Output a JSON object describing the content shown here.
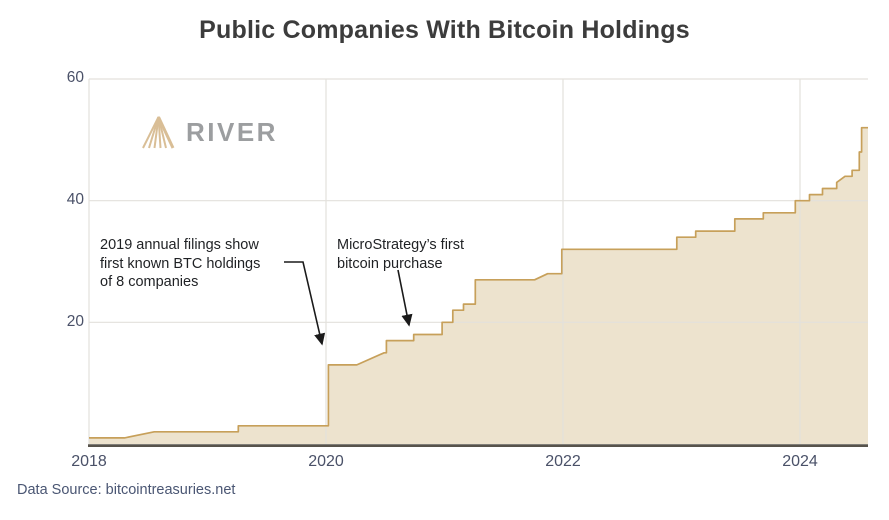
{
  "title": "Public Companies With Bitcoin Holdings",
  "logo": {
    "text": "RIVER"
  },
  "annotations": [
    {
      "lines": [
        "2019 annual filings show",
        "first known BTC holdings",
        "of 8 companies"
      ],
      "arrow_points": [
        [
          284,
          262
        ],
        [
          303,
          262
        ],
        [
          322,
          344
        ]
      ]
    },
    {
      "lines": [
        "MicroStrategy’s first",
        "bitcoin purchase"
      ],
      "arrow_points": [
        [
          398,
          270
        ],
        [
          409,
          325
        ]
      ]
    }
  ],
  "footer": {
    "source": "Data Source: bitcointreasuries.net"
  },
  "colors": {
    "area_fill": "#ede3ce",
    "area_stroke": "#c7a05a",
    "grid": "#e3e1dc",
    "axis_line": "#57534b",
    "tick_label": "#4a5168",
    "title": "#3c3c3c",
    "annotation": "#1f2124",
    "arrow": "#1a1a1a",
    "source": "#4a5673",
    "logo_text": "#9c9ea0",
    "logo_mark": "#d9be96"
  },
  "chart_data": {
    "type": "area",
    "title": "Public Companies With Bitcoin Holdings",
    "xlabel": "",
    "ylabel": "",
    "x_ticks": [
      "2018",
      "2020",
      "2022",
      "2024"
    ],
    "y_ticks_top_to_bottom": [
      "60",
      "40",
      "20"
    ],
    "xlim": [
      2018,
      2024.57
    ],
    "ylim": [
      0,
      60
    ],
    "x_gridlines_years": [
      2018,
      2020,
      2022,
      2024
    ],
    "y_gridlines_values": [
      20,
      40,
      60
    ],
    "grid": true,
    "legend": false,
    "series": [
      {
        "name": "public-companies-with-bitcoin-holdings",
        "step_points_year_count": [
          [
            2018.0,
            1
          ],
          [
            2018.3,
            1
          ],
          [
            2018.55,
            2
          ],
          [
            2019.26,
            2
          ],
          [
            2019.26,
            3
          ],
          [
            2020.02,
            3
          ],
          [
            2020.02,
            13
          ],
          [
            2020.26,
            13
          ],
          [
            2020.49,
            15
          ],
          [
            2020.51,
            15
          ],
          [
            2020.51,
            17
          ],
          [
            2020.74,
            17
          ],
          [
            2020.74,
            18
          ],
          [
            2020.98,
            18
          ],
          [
            2020.98,
            20
          ],
          [
            2021.07,
            20
          ],
          [
            2021.07,
            22
          ],
          [
            2021.16,
            22
          ],
          [
            2021.16,
            23
          ],
          [
            2021.26,
            23
          ],
          [
            2021.26,
            27
          ],
          [
            2021.76,
            27
          ],
          [
            2021.87,
            28
          ],
          [
            2021.99,
            28
          ],
          [
            2021.99,
            32
          ],
          [
            2022.96,
            32
          ],
          [
            2022.96,
            34
          ],
          [
            2023.12,
            34
          ],
          [
            2023.12,
            35
          ],
          [
            2023.45,
            35
          ],
          [
            2023.45,
            37
          ],
          [
            2023.69,
            37
          ],
          [
            2023.69,
            38
          ],
          [
            2023.96,
            38
          ],
          [
            2023.96,
            40
          ],
          [
            2024.08,
            40
          ],
          [
            2024.08,
            41
          ],
          [
            2024.19,
            41
          ],
          [
            2024.19,
            42
          ],
          [
            2024.31,
            42
          ],
          [
            2024.31,
            43
          ],
          [
            2024.38,
            44
          ],
          [
            2024.44,
            44
          ],
          [
            2024.44,
            45
          ],
          [
            2024.5,
            45
          ],
          [
            2024.5,
            48
          ],
          [
            2024.52,
            48
          ],
          [
            2024.52,
            52
          ],
          [
            2024.57,
            52
          ]
        ]
      }
    ]
  }
}
